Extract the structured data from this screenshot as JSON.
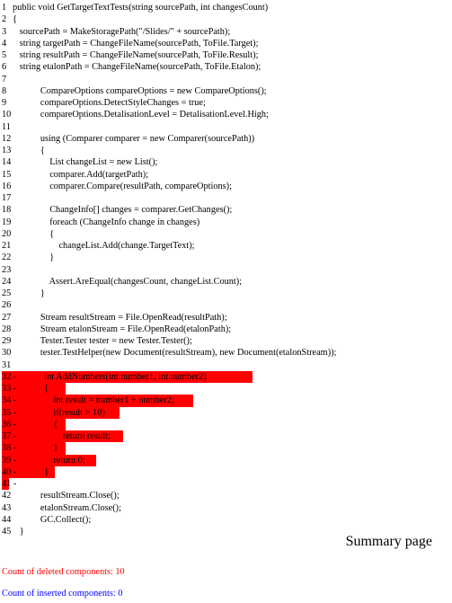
{
  "code": [
    {
      "num": "1",
      "text": "public void GetTargetTextTests(string sourcePath, int changesCount)",
      "deleted": false
    },
    {
      "num": "2",
      "text": "{",
      "deleted": false
    },
    {
      "num": "3",
      "text": "   sourcePath = MakeStoragePath(\"/Slides/\" + sourcePath);",
      "deleted": false
    },
    {
      "num": "4",
      "text": "   string targetPath = ChangeFileName(sourcePath, ToFile.Target);",
      "deleted": false
    },
    {
      "num": "5",
      "text": "   string resultPath = ChangeFileName(sourcePath, ToFile.Result);",
      "deleted": false
    },
    {
      "num": "6",
      "text": "   string etalonPath = ChangeFileName(sourcePath, ToFile.Etalon);",
      "deleted": false
    },
    {
      "num": "7",
      "text": "",
      "deleted": false
    },
    {
      "num": "8",
      "text": "            CompareOptions compareOptions = new CompareOptions();",
      "deleted": false
    },
    {
      "num": "9",
      "text": "            compareOptions.DetectStyleChanges = true;",
      "deleted": false
    },
    {
      "num": "10",
      "text": "            compareOptions.DetalisationLevel = DetalisationLevel.High;",
      "deleted": false
    },
    {
      "num": "11",
      "text": "",
      "deleted": false
    },
    {
      "num": "12",
      "text": "            using (Comparer comparer = new Comparer(sourcePath))",
      "deleted": false
    },
    {
      "num": "13",
      "text": "            {",
      "deleted": false
    },
    {
      "num": "14",
      "text": "                List changeList = new List();",
      "deleted": false
    },
    {
      "num": "15",
      "text": "                comparer.Add(targetPath);",
      "deleted": false
    },
    {
      "num": "16",
      "text": "                comparer.Compare(resultPath, compareOptions);",
      "deleted": false
    },
    {
      "num": "17",
      "text": "",
      "deleted": false
    },
    {
      "num": "18",
      "text": "                ChangeInfo[] changes = comparer.GetChanges();",
      "deleted": false
    },
    {
      "num": "19",
      "text": "                foreach (ChangeInfo change in changes)",
      "deleted": false
    },
    {
      "num": "20",
      "text": "                {",
      "deleted": false
    },
    {
      "num": "21",
      "text": "                    changeList.Add(change.TargetText);",
      "deleted": false
    },
    {
      "num": "22",
      "text": "                }",
      "deleted": false
    },
    {
      "num": "23",
      "text": "",
      "deleted": false
    },
    {
      "num": "24",
      "text": "                Assert.AreEqual(changesCount, changeList.Count);",
      "deleted": false
    },
    {
      "num": "25",
      "text": "            }",
      "deleted": false
    },
    {
      "num": "26",
      "text": "",
      "deleted": false
    },
    {
      "num": "27",
      "text": "            Stream resultStream = File.OpenRead(resultPath);",
      "deleted": false
    },
    {
      "num": "28",
      "text": "            Stream etalonStream = File.OpenRead(etalonPath);",
      "deleted": false
    },
    {
      "num": "29",
      "text": "            Tester.Tester tester = new Tester.Tester();",
      "deleted": false
    },
    {
      "num": "30",
      "text": "            tester.TestHelper(new Document(resultStream), new Document(etalonStream));",
      "deleted": false
    },
    {
      "num": "31",
      "text": "",
      "deleted": false
    },
    {
      "num": "32 -",
      "text": "            int AddNumbers(int number1, int number2)",
      "deleted": true
    },
    {
      "num": "33 -",
      "text": "            {",
      "deleted": true
    },
    {
      "num": "34 -",
      "text": "                int result = number1 + number2;",
      "deleted": true
    },
    {
      "num": "35 -",
      "text": "                if(result > 10)",
      "deleted": true
    },
    {
      "num": "36 -",
      "text": "                {",
      "deleted": true
    },
    {
      "num": "37 -",
      "text": "                    return result;",
      "deleted": true
    },
    {
      "num": "38 -",
      "text": "                }",
      "deleted": true
    },
    {
      "num": "39 -",
      "text": "                return 0;",
      "deleted": true
    },
    {
      "num": "40 -",
      "text": "            }",
      "deleted": true
    },
    {
      "num": "41 -",
      "text": "",
      "deleted": true
    },
    {
      "num": "42",
      "text": "            resultStream.Close();",
      "deleted": false
    },
    {
      "num": "43",
      "text": "            etalonStream.Close();",
      "deleted": false
    },
    {
      "num": "44",
      "text": "            GC.Collect();",
      "deleted": false
    },
    {
      "num": "45",
      "text": "   }",
      "deleted": false
    }
  ],
  "summary": {
    "title": "Summary page",
    "deleted_text": "Count of deleted components: 10",
    "inserted_text": "Count of inserted components: 0"
  },
  "colors": {
    "deleted": "#ff0000",
    "inserted": "#0000ff"
  }
}
